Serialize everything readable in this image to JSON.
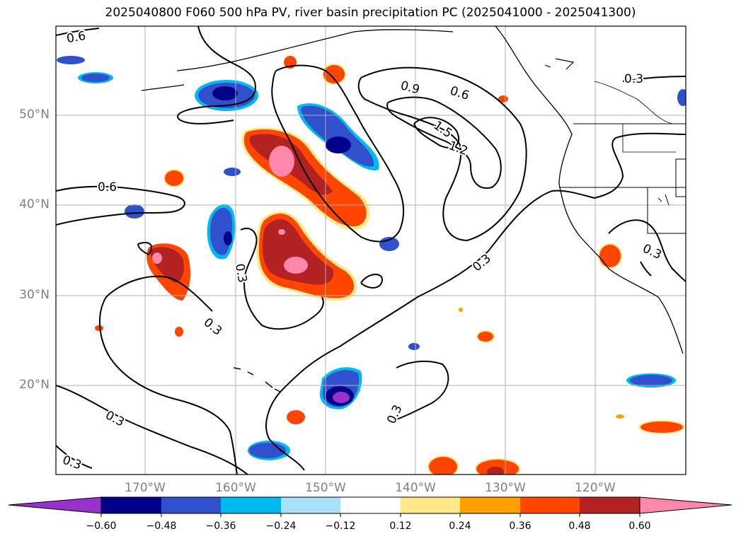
{
  "title": "2025040800 F060 500 hPa PV, river basin precipitation PC (2025041000 - 2025041300)",
  "map": {
    "lat_labels": [
      "50°N",
      "40°N",
      "30°N",
      "20°N"
    ],
    "lon_labels": [
      "170°W",
      "160°W",
      "150°W",
      "140°W",
      "130°W",
      "120°W"
    ],
    "gridlines": true
  },
  "pv_contour_labels": [
    "0.6",
    "0.9",
    "0.6",
    "1.5",
    "1.2",
    "0.6",
    "0.3",
    "0.3",
    "0.3",
    "0.3",
    "0.3",
    "0.3",
    "0.3",
    "0.3"
  ],
  "colorbar": {
    "ticks": [
      "−0.60",
      "−0.48",
      "−0.36",
      "−0.24",
      "−0.12",
      "0.12",
      "0.24",
      "0.36",
      "0.48",
      "0.60"
    ],
    "colors": [
      "#9932cc",
      "#00008b",
      "#3050cc",
      "#00b8f0",
      "#a8e0f8",
      "#ffffff",
      "#ffe88a",
      "#ff9f00",
      "#ff4500",
      "#b22222",
      "#ff88aa"
    ],
    "extend": "both"
  }
}
